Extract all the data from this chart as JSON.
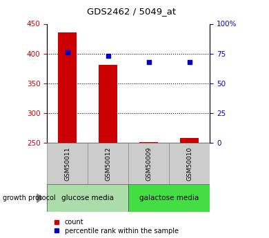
{
  "title": "GDS2462 / 5049_at",
  "samples": [
    "GSM50011",
    "GSM50012",
    "GSM50009",
    "GSM50010"
  ],
  "bar_values": [
    436,
    381,
    251,
    258
  ],
  "bar_bottom": 250,
  "percentile_values": [
    76,
    73,
    68,
    68
  ],
  "bar_color": "#cc0000",
  "dot_color": "#0000cc",
  "ylim_left": [
    250,
    450
  ],
  "ylim_right": [
    0,
    100
  ],
  "yticks_left": [
    250,
    300,
    350,
    400,
    450
  ],
  "yticks_right": [
    0,
    25,
    50,
    75,
    100
  ],
  "yticklabels_right": [
    "0",
    "25",
    "50",
    "75",
    "100%"
  ],
  "grid_values": [
    300,
    350,
    400
  ],
  "groups": [
    {
      "label": "glucose media",
      "color": "#aaddaa"
    },
    {
      "label": "galactose media",
      "color": "#44dd44"
    }
  ],
  "group_protocol_label": "growth protocol",
  "legend_count_color": "#cc0000",
  "legend_pct_color": "#0000cc",
  "legend_count_label": "count",
  "legend_pct_label": "percentile rank within the sample",
  "left_tick_color": "#cc0000",
  "right_tick_color": "#0000cc",
  "sample_label_bg": "#cccccc"
}
